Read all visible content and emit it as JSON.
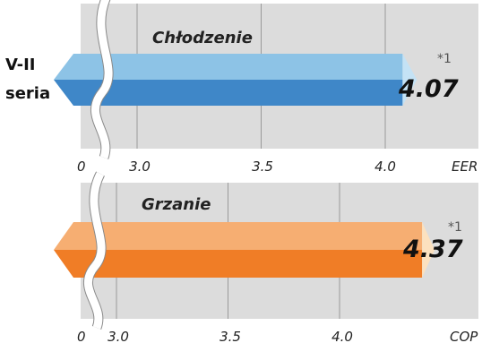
{
  "colors": {
    "panel_bg": "#dcdcdc",
    "grid": "#9a9a9a",
    "cool_top": "#8dc3e6",
    "cool_bottom": "#3f87c8",
    "cool_tip": "#c4e2f5",
    "heat_top": "#f6ae72",
    "heat_bottom": "#f07d26",
    "heat_tip": "#fce1bf"
  },
  "series_label": [
    "V-II",
    "seria"
  ],
  "chart_data": [
    {
      "type": "bar",
      "title": "Chłodzenie",
      "categories": [
        "V-II seria"
      ],
      "values": [
        4.07
      ],
      "value_label": "4.07",
      "footnote": "*1",
      "xlabel": "EER",
      "x_ticks": [
        0,
        3.0,
        3.5,
        4.0
      ],
      "x_tick_labels": [
        "0",
        "3.0",
        "3.5",
        "4.0"
      ],
      "axis_break": "between 0 and 3.0",
      "grid": true,
      "color": "#5ea2d7"
    },
    {
      "type": "bar",
      "title": "Grzanie",
      "categories": [
        "V-II seria"
      ],
      "values": [
        4.37
      ],
      "value_label": "4.37",
      "footnote": "*1",
      "xlabel": "COP",
      "x_ticks": [
        0,
        3.0,
        3.5,
        4.0
      ],
      "x_tick_labels": [
        "0",
        "3.0",
        "3.5",
        "4.0"
      ],
      "axis_break": "between 0 and 3.0",
      "grid": true,
      "color": "#f39445"
    }
  ]
}
